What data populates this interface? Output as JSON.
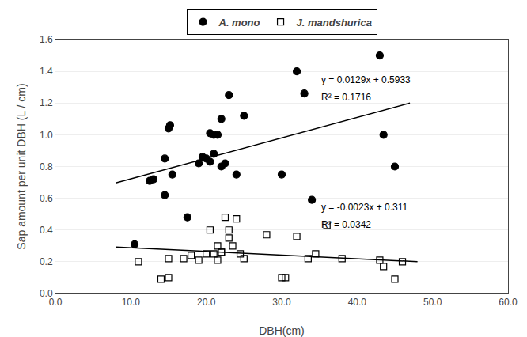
{
  "chart_data": {
    "type": "scatter",
    "xlabel": "DBH(cm)",
    "ylabel": "Sap amount per unit DBH (L / cm)",
    "xlim": [
      0.0,
      60.0
    ],
    "ylim": [
      0.0,
      1.6
    ],
    "xticks": [
      {
        "value": 0,
        "label": "0.0"
      },
      {
        "value": 10,
        "label": "10.0"
      },
      {
        "value": 20,
        "label": "20.0"
      },
      {
        "value": 30,
        "label": "30.0"
      },
      {
        "value": 40,
        "label": "40.0"
      },
      {
        "value": 50,
        "label": "50.0"
      },
      {
        "value": 60,
        "label": "60.0"
      }
    ],
    "yticks": [
      {
        "value": 0,
        "label": "0.0"
      },
      0.2,
      0.4,
      0.6,
      0.8,
      {
        "value": 1,
        "label": "1.0"
      },
      1.2,
      1.4,
      1.6
    ],
    "grid": "y",
    "legend": "top",
    "series": [
      {
        "name": "A. mono",
        "type": "scatter",
        "marker": "circle",
        "color": "black",
        "x": [
          10.5,
          12.5,
          13.0,
          14.5,
          14.5,
          15.0,
          15.2,
          15.5,
          17.5,
          19.0,
          19.5,
          20.0,
          20.5,
          20.5,
          21.0,
          21.0,
          21.5,
          22.0,
          22.0,
          22.5,
          23.0,
          24.0,
          25.0,
          30.0,
          32.0,
          33.0,
          34.0,
          43.0,
          43.5,
          45.0
        ],
        "values": [
          0.31,
          0.71,
          0.72,
          0.85,
          0.62,
          1.04,
          1.06,
          0.75,
          0.48,
          0.82,
          0.86,
          0.85,
          1.01,
          0.83,
          0.88,
          1.0,
          1.0,
          1.1,
          0.8,
          0.82,
          1.25,
          0.75,
          1.12,
          0.75,
          1.4,
          1.26,
          0.59,
          1.5,
          1.0,
          0.8
        ]
      },
      {
        "name": "J. mandshurica",
        "type": "scatter",
        "marker": "square-open",
        "color": "black",
        "x": [
          11.0,
          14.0,
          15.0,
          15.0,
          17.0,
          18.0,
          19.0,
          20.0,
          20.5,
          21.0,
          21.5,
          21.5,
          22.0,
          22.0,
          22.5,
          23.0,
          23.0,
          23.5,
          24.0,
          24.5,
          25.0,
          28.0,
          30.0,
          30.5,
          32.0,
          33.5,
          34.5,
          36.0,
          38.0,
          43.0,
          43.5,
          45.0,
          46.0
        ],
        "values": [
          0.2,
          0.09,
          0.1,
          0.22,
          0.22,
          0.24,
          0.21,
          0.25,
          0.4,
          0.25,
          0.3,
          0.21,
          0.26,
          0.26,
          0.48,
          0.4,
          0.35,
          0.3,
          0.47,
          0.25,
          0.22,
          0.37,
          0.1,
          0.1,
          0.36,
          0.22,
          0.25,
          0.43,
          0.22,
          0.21,
          0.17,
          0.09,
          0.2
        ]
      },
      {
        "type": "line",
        "line_style": "solid",
        "color": "black",
        "x": [
          8.0,
          47.0
        ],
        "values": [
          0.6965,
          1.1996
        ]
      },
      {
        "type": "line",
        "line_style": "solid",
        "color": "black",
        "x": [
          8.0,
          48.0
        ],
        "values": [
          0.2926,
          0.2006
        ]
      }
    ],
    "annotations": [
      {
        "x": 35.0,
        "y": 1.3,
        "text": "y = 0.0129x + 0.5933"
      },
      {
        "x": 35.0,
        "y": 1.19,
        "text": "R² = 0.1716"
      },
      {
        "x": 35.0,
        "y": 0.5,
        "text": "y = -0.0023x + 0.311"
      },
      {
        "x": 35.0,
        "y": 0.39,
        "text": "R² = 0.0342"
      }
    ]
  }
}
